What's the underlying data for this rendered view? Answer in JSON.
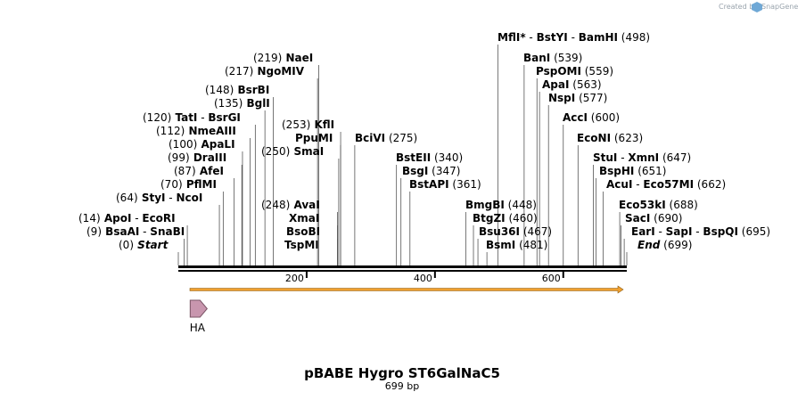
{
  "credit": {
    "text": "Created by",
    "brand": "SnapGene"
  },
  "title": "pBABE Hygro ST6GalNaC5",
  "length_label": "699 bp",
  "sequence_length": 699,
  "axis": {
    "ticks": [
      200,
      400,
      600
    ]
  },
  "features": [
    {
      "name": "HA",
      "type": "tag",
      "start": 6,
      "end": 30,
      "color": "#c896ae",
      "stroke": "#7a5466"
    },
    {
      "name": "ORF",
      "type": "orf",
      "start": 0,
      "end": 699,
      "color": "#f0a030"
    }
  ],
  "colors": {
    "backbone": "#000000",
    "leader": "#555555",
    "orf": "#f0a030",
    "ha_fill": "#c896ae"
  },
  "labels": [
    {
      "parts": [
        {
          "t": "(0)",
          "c": "pos"
        },
        {
          "t": "Start",
          "c": "it"
        }
      ],
      "sites": [
        0
      ]
    },
    {
      "parts": [
        {
          "t": "(9)",
          "c": "pos"
        },
        {
          "t": "BsaAI",
          "c": "nm"
        },
        {
          "t": "-",
          "c": "pos"
        },
        {
          "t": "SnaBI",
          "c": "nm"
        }
      ],
      "sites": [
        9
      ]
    },
    {
      "parts": [
        {
          "t": "(14)",
          "c": "pos"
        },
        {
          "t": "ApoI",
          "c": "nm"
        },
        {
          "t": "-",
          "c": "pos"
        },
        {
          "t": "EcoRI",
          "c": "nm"
        }
      ],
      "sites": [
        14
      ]
    },
    {
      "parts": [
        {
          "t": "(64)",
          "c": "pos"
        },
        {
          "t": "StyI",
          "c": "nm"
        },
        {
          "t": "-",
          "c": "pos"
        },
        {
          "t": "NcoI",
          "c": "nm"
        }
      ],
      "sites": [
        64
      ]
    },
    {
      "parts": [
        {
          "t": "(70)",
          "c": "pos"
        },
        {
          "t": "PflMI",
          "c": "nm"
        }
      ],
      "sites": [
        70
      ]
    },
    {
      "parts": [
        {
          "t": "(87)",
          "c": "pos"
        },
        {
          "t": "AfeI",
          "c": "nm"
        }
      ],
      "sites": [
        87
      ]
    },
    {
      "parts": [
        {
          "t": "(99)",
          "c": "pos"
        },
        {
          "t": "DraIII",
          "c": "nm"
        }
      ],
      "sites": [
        99
      ]
    },
    {
      "parts": [
        {
          "t": "(100)",
          "c": "pos"
        },
        {
          "t": "ApaLI",
          "c": "nm"
        }
      ],
      "sites": [
        100
      ]
    },
    {
      "parts": [
        {
          "t": "(112)",
          "c": "pos"
        },
        {
          "t": "NmeAIII",
          "c": "nm"
        }
      ],
      "sites": [
        112
      ]
    },
    {
      "parts": [
        {
          "t": "(120)",
          "c": "pos"
        },
        {
          "t": "TatI",
          "c": "nm"
        },
        {
          "t": "-",
          "c": "pos"
        },
        {
          "t": "BsrGI",
          "c": "nm"
        }
      ],
      "sites": [
        120
      ]
    },
    {
      "parts": [
        {
          "t": "(135)",
          "c": "pos"
        },
        {
          "t": "BglI",
          "c": "nm"
        }
      ],
      "sites": [
        135
      ]
    },
    {
      "parts": [
        {
          "t": "(148)",
          "c": "pos"
        },
        {
          "t": "BsrBI",
          "c": "nm"
        }
      ],
      "sites": [
        148
      ]
    },
    {
      "parts": [
        {
          "t": "(217)",
          "c": "pos"
        },
        {
          "t": "NgoMIV",
          "c": "nm"
        }
      ],
      "sites": [
        217
      ]
    },
    {
      "parts": [
        {
          "t": "(219)",
          "c": "pos"
        },
        {
          "t": "NaeI",
          "c": "nm"
        }
      ],
      "sites": [
        219
      ]
    },
    {
      "parts": [
        {
          "t": "(253)",
          "c": "pos"
        },
        {
          "t": "KflI",
          "c": "nm"
        }
      ],
      "sites": [
        253
      ]
    },
    {
      "parts": [
        {
          "t": "PpuMI",
          "c": "nm"
        }
      ],
      "sites": [
        253
      ]
    },
    {
      "parts": [
        {
          "t": "(250)",
          "c": "pos"
        },
        {
          "t": "SmaI",
          "c": "nm"
        }
      ],
      "sites": [
        250
      ]
    },
    {
      "parts": [
        {
          "t": "(248)",
          "c": "pos"
        },
        {
          "t": "AvaI",
          "c": "nm"
        }
      ],
      "sites": [
        248
      ]
    },
    {
      "parts": [
        {
          "t": "XmaI",
          "c": "nm"
        }
      ],
      "sites": [
        248
      ]
    },
    {
      "parts": [
        {
          "t": "BsoBI",
          "c": "nm"
        }
      ],
      "sites": [
        248
      ]
    },
    {
      "parts": [
        {
          "t": "TspMI",
          "c": "nm"
        }
      ],
      "sites": [
        248
      ]
    },
    {
      "parts": [
        {
          "t": "BciVI",
          "c": "nm"
        },
        {
          "t": "(275)",
          "c": "pos"
        }
      ],
      "sites": [
        275
      ]
    },
    {
      "parts": [
        {
          "t": "BstEII",
          "c": "nm"
        },
        {
          "t": "(340)",
          "c": "pos"
        }
      ],
      "sites": [
        340
      ]
    },
    {
      "parts": [
        {
          "t": "BsgI",
          "c": "nm"
        },
        {
          "t": "(347)",
          "c": "pos"
        }
      ],
      "sites": [
        347
      ]
    },
    {
      "parts": [
        {
          "t": "BstAPI",
          "c": "nm"
        },
        {
          "t": "(361)",
          "c": "pos"
        }
      ],
      "sites": [
        361
      ]
    },
    {
      "parts": [
        {
          "t": "BmgBI",
          "c": "nm"
        },
        {
          "t": "(448)",
          "c": "pos"
        }
      ],
      "sites": [
        448
      ]
    },
    {
      "parts": [
        {
          "t": "BtgZI",
          "c": "nm"
        },
        {
          "t": "(460)",
          "c": "pos"
        }
      ],
      "sites": [
        460
      ]
    },
    {
      "parts": [
        {
          "t": "Bsu36I",
          "c": "nm"
        },
        {
          "t": "(467)",
          "c": "pos"
        }
      ],
      "sites": [
        467
      ]
    },
    {
      "parts": [
        {
          "t": "BsmI",
          "c": "nm"
        },
        {
          "t": "(481)",
          "c": "pos"
        }
      ],
      "sites": [
        481
      ]
    },
    {
      "parts": [
        {
          "t": "MflI",
          "c": "nm"
        },
        {
          "t": "*",
          "c": "nm"
        },
        {
          "t": "-",
          "c": "pos"
        },
        {
          "t": "BstYI",
          "c": "nm"
        },
        {
          "t": "-",
          "c": "pos"
        },
        {
          "t": "BamHI",
          "c": "nm"
        },
        {
          "t": "(498)",
          "c": "pos"
        }
      ],
      "sites": [
        498
      ]
    },
    {
      "parts": [
        {
          "t": "BanI",
          "c": "nm"
        },
        {
          "t": "(539)",
          "c": "pos"
        }
      ],
      "sites": [
        539
      ]
    },
    {
      "parts": [
        {
          "t": "PspOMI",
          "c": "nm"
        },
        {
          "t": "(559)",
          "c": "pos"
        }
      ],
      "sites": [
        559
      ]
    },
    {
      "parts": [
        {
          "t": "ApaI",
          "c": "nm"
        },
        {
          "t": "(563)",
          "c": "pos"
        }
      ],
      "sites": [
        563
      ]
    },
    {
      "parts": [
        {
          "t": "NspI",
          "c": "nm"
        },
        {
          "t": "(577)",
          "c": "pos"
        }
      ],
      "sites": [
        577
      ]
    },
    {
      "parts": [
        {
          "t": "AccI",
          "c": "nm"
        },
        {
          "t": "(600)",
          "c": "pos"
        }
      ],
      "sites": [
        600
      ]
    },
    {
      "parts": [
        {
          "t": "EcoNI",
          "c": "nm"
        },
        {
          "t": "(623)",
          "c": "pos"
        }
      ],
      "sites": [
        623
      ]
    },
    {
      "parts": [
        {
          "t": "StuI",
          "c": "nm"
        },
        {
          "t": "-",
          "c": "pos"
        },
        {
          "t": "XmnI",
          "c": "nm"
        },
        {
          "t": "(647)",
          "c": "pos"
        }
      ],
      "sites": [
        647
      ]
    },
    {
      "parts": [
        {
          "t": "BspHI",
          "c": "nm"
        },
        {
          "t": "(651)",
          "c": "pos"
        }
      ],
      "sites": [
        651
      ]
    },
    {
      "parts": [
        {
          "t": "AcuI",
          "c": "nm"
        },
        {
          "t": "-",
          "c": "pos"
        },
        {
          "t": "Eco57MI",
          "c": "nm"
        },
        {
          "t": "(662)",
          "c": "pos"
        }
      ],
      "sites": [
        662
      ]
    },
    {
      "parts": [
        {
          "t": "Eco53kI",
          "c": "nm"
        },
        {
          "t": "(688)",
          "c": "pos"
        }
      ],
      "sites": [
        688
      ]
    },
    {
      "parts": [
        {
          "t": "SacI",
          "c": "nm"
        },
        {
          "t": "(690)",
          "c": "pos"
        }
      ],
      "sites": [
        690
      ]
    },
    {
      "parts": [
        {
          "t": "EarI",
          "c": "nm"
        },
        {
          "t": "-",
          "c": "pos"
        },
        {
          "t": "SapI",
          "c": "nm"
        },
        {
          "t": "-",
          "c": "pos"
        },
        {
          "t": "BspQI",
          "c": "nm"
        },
        {
          "t": "(695)",
          "c": "pos"
        }
      ],
      "sites": [
        695
      ]
    },
    {
      "parts": [
        {
          "t": "End",
          "c": "it"
        },
        {
          "t": "(699)",
          "c": "pos"
        }
      ],
      "sites": [
        699
      ]
    }
  ]
}
